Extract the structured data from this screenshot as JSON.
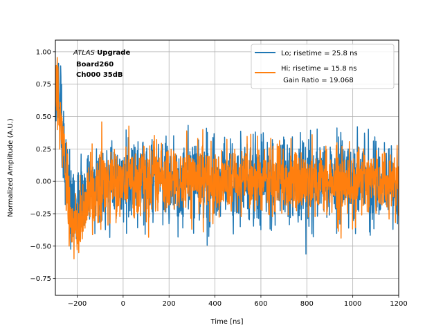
{
  "chart_data": {
    "type": "line",
    "title": "",
    "xlabel": "Time [ns]",
    "ylabel": "Normalized Amplitude (A.U.)",
    "xlim": [
      -295,
      1200
    ],
    "ylim": [
      -0.88,
      1.09
    ],
    "grid": true,
    "xticks": [
      -200,
      0,
      200,
      400,
      600,
      800,
      1000,
      1200
    ],
    "xtick_labels": [
      "−200",
      "0",
      "200",
      "400",
      "600",
      "800",
      "1000",
      "1200"
    ],
    "yticks": [
      -0.75,
      -0.5,
      -0.25,
      0.0,
      0.25,
      0.5,
      0.75,
      1.0
    ],
    "ytick_labels": [
      "−0.75",
      "−0.50",
      "−0.25",
      "0.00",
      "0.25",
      "0.50",
      "0.75",
      "1.00"
    ],
    "legend": {
      "position": "top-right",
      "entries": [
        {
          "label": "Lo; risetime = 25.8 ns"
        },
        {
          "label": "Hi; risetime = 15.8 ns"
        },
        {
          "label": " Gain Ratio = 19.068"
        }
      ]
    },
    "annotation": {
      "italic": "ATLAS",
      "bold1": "Upgrade",
      "line2": "Board260",
      "line3": "Ch000 35dB"
    },
    "series": [
      {
        "name": "Lo; risetime = 25.8 ns",
        "color": "#1f77b4",
        "x": [
          -295,
          -285,
          -275,
          -265,
          -255,
          -245,
          -235,
          -225,
          -215,
          -205,
          -195,
          -185,
          -175,
          -165,
          -155,
          -145,
          -135,
          -125,
          -115,
          -100,
          -80,
          -60,
          -40,
          -20,
          0,
          30,
          60,
          100,
          150,
          200,
          300,
          400,
          500,
          600,
          700,
          800,
          900,
          1000,
          1100,
          1200
        ],
        "y": [
          0.68,
          0.65,
          0.55,
          0.38,
          0.18,
          0.05,
          -0.08,
          -0.16,
          -0.2,
          -0.2,
          -0.18,
          -0.16,
          -0.14,
          -0.12,
          -0.1,
          -0.08,
          -0.06,
          -0.05,
          -0.04,
          -0.03,
          -0.02,
          -0.01,
          0.0,
          0.0,
          0.0,
          0.01,
          0.01,
          0.0,
          0.01,
          0.0,
          0.0,
          0.01,
          0.0,
          0.0,
          0.0,
          0.0,
          0.01,
          0.0,
          0.0,
          0.0
        ],
        "noise_amplitude": 0.16
      },
      {
        "name": "Hi; risetime = 15.8 ns",
        "color": "#ff7f0e",
        "x": [
          -295,
          -285,
          -275,
          -265,
          -255,
          -245,
          -235,
          -225,
          -215,
          -205,
          -195,
          -185,
          -175,
          -165,
          -155,
          -145,
          -135,
          -125,
          -115,
          -100,
          -80,
          -60,
          -40,
          -20,
          0,
          30,
          60,
          100,
          150,
          200,
          300,
          400,
          500,
          600,
          700,
          800,
          900,
          1000,
          1100,
          1200
        ],
        "y": [
          0.75,
          0.68,
          0.55,
          0.35,
          0.12,
          -0.05,
          -0.2,
          -0.3,
          -0.36,
          -0.38,
          -0.36,
          -0.32,
          -0.27,
          -0.22,
          -0.17,
          -0.13,
          -0.1,
          -0.08,
          -0.06,
          -0.04,
          -0.03,
          -0.02,
          -0.01,
          0.0,
          0.0,
          0.01,
          0.01,
          0.0,
          0.01,
          0.0,
          0.0,
          0.0,
          0.0,
          0.0,
          0.0,
          0.0,
          0.0,
          0.0,
          0.0,
          0.0
        ],
        "noise_amplitude": 0.13
      }
    ]
  }
}
